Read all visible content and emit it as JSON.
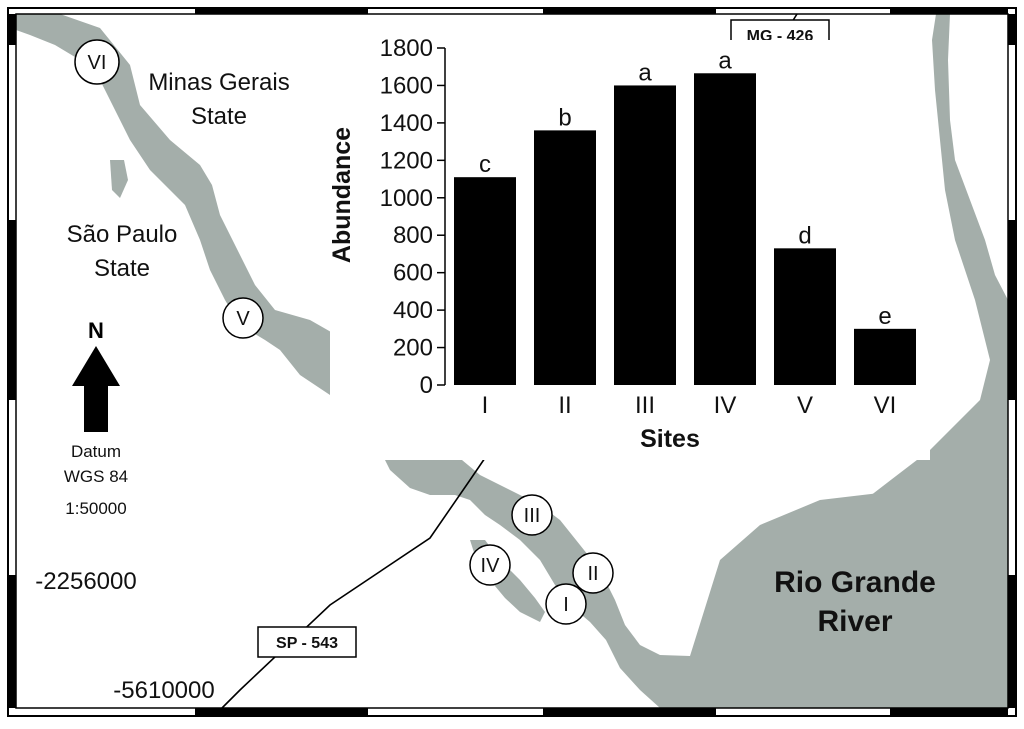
{
  "map": {
    "labels": {
      "minas_gerais": [
        "Minas Gerais",
        "State"
      ],
      "sao_paulo": [
        "São Paulo",
        "State"
      ],
      "rio_grande": [
        "Rio Grande",
        "River"
      ],
      "north": "N",
      "datum": [
        "Datum",
        "WGS 84"
      ],
      "scale": "1:50000",
      "coord_y": "-2256000",
      "coord_x": "-5610000"
    },
    "roads": {
      "mg": "MG - 426",
      "sp": "SP - 543"
    },
    "site_markers": [
      "VI",
      "V",
      "III",
      "IV",
      "II",
      "I"
    ],
    "colors": {
      "water": "#a4aeaa",
      "frame": "#000000",
      "background": "#ffffff"
    }
  },
  "chart_data": {
    "type": "bar",
    "categories": [
      "I",
      "II",
      "III",
      "IV",
      "V",
      "VI"
    ],
    "values": [
      1110,
      1360,
      1600,
      1665,
      730,
      300
    ],
    "letters": [
      "c",
      "b",
      "a",
      "a",
      "d",
      "e"
    ],
    "xlabel": "Sites",
    "ylabel": "Abundance",
    "ylim": [
      0,
      1800
    ],
    "yticks": [
      0,
      200,
      400,
      600,
      800,
      1000,
      1200,
      1400,
      1600,
      1800
    ],
    "bar_color": "#000000",
    "grid": false
  }
}
